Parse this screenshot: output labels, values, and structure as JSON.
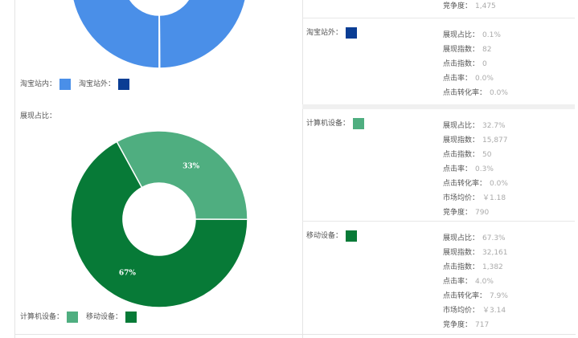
{
  "colors": {
    "taobao_in": "#4a8fe8",
    "taobao_out": "#0a3d94",
    "computer": "#4fae80",
    "mobile": "#077a37"
  },
  "top_chart": {
    "legend": [
      {
        "label": "淘宝站内：",
        "color": "#4a8fe8"
      },
      {
        "label": "淘宝站外：",
        "color": "#0a3d94"
      }
    ]
  },
  "device_chart": {
    "title": "展现占比：",
    "legend": [
      {
        "label": "计算机设备：",
        "color": "#4fae80"
      },
      {
        "label": "移动设备：",
        "color": "#077a37"
      }
    ],
    "chart_data": {
      "type": "pie",
      "categories": [
        "计算机设备",
        "移动设备"
      ],
      "values": [
        33,
        67
      ],
      "data_labels": [
        "33%",
        "67%"
      ],
      "donut": true
    }
  },
  "rows": [
    {
      "label": "",
      "stats": [
        {
          "k": "竞争度：",
          "v": "1,475"
        }
      ]
    },
    {
      "label": "淘宝站外：",
      "color": "#0a3d94",
      "stats": [
        {
          "k": "展现占比：",
          "v": "0.1%"
        },
        {
          "k": "展现指数：",
          "v": "82"
        },
        {
          "k": "点击指数：",
          "v": "0"
        },
        {
          "k": "点击率：",
          "v": "0.0%"
        },
        {
          "k": "点击转化率：",
          "v": "0.0%"
        }
      ]
    },
    {
      "label": "计算机设备：",
      "color": "#4fae80",
      "stats": [
        {
          "k": "展现占比：",
          "v": "32.7%"
        },
        {
          "k": "展现指数：",
          "v": "15,877"
        },
        {
          "k": "点击指数：",
          "v": "50"
        },
        {
          "k": "点击率：",
          "v": "0.3%"
        },
        {
          "k": "点击转化率：",
          "v": "0.0%"
        },
        {
          "k": "市场均价：",
          "v": "￥1.18"
        },
        {
          "k": "竞争度：",
          "v": "790"
        }
      ]
    },
    {
      "label": "移动设备：",
      "color": "#077a37",
      "stats": [
        {
          "k": "展现占比：",
          "v": "67.3%"
        },
        {
          "k": "展现指数：",
          "v": "32,161"
        },
        {
          "k": "点击指数：",
          "v": "1,382"
        },
        {
          "k": "点击率：",
          "v": "4.0%"
        },
        {
          "k": "点击转化率：",
          "v": "7.9%"
        },
        {
          "k": "市场均价：",
          "v": "￥3.14"
        },
        {
          "k": "竞争度：",
          "v": "717"
        }
      ]
    }
  ]
}
